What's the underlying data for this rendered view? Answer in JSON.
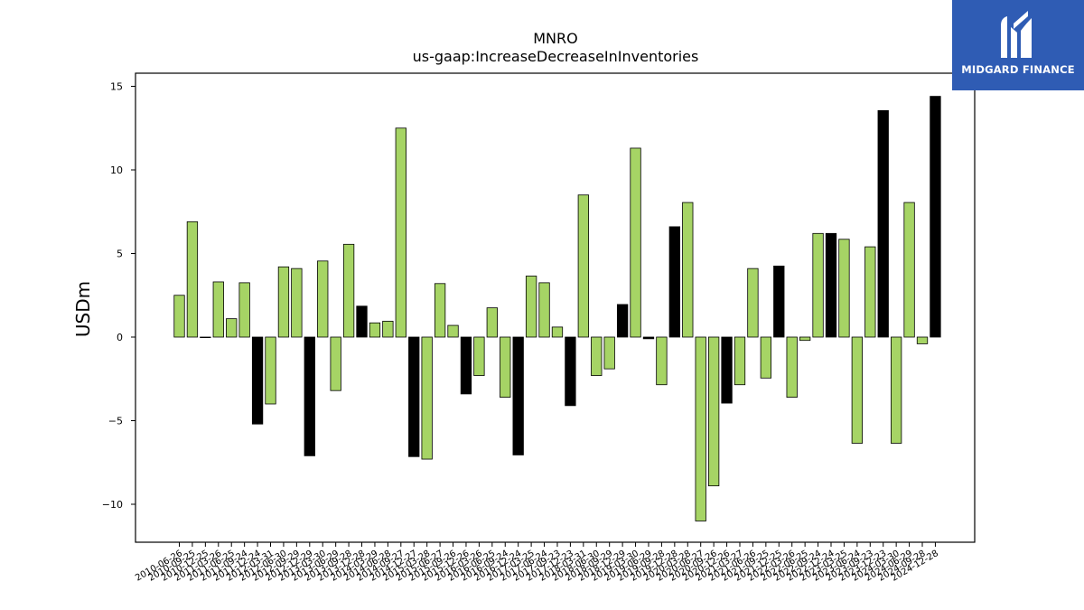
{
  "logo": {
    "name": "MIDGARD FINANCE"
  },
  "chart_data": {
    "type": "bar",
    "title": "MNRO",
    "subtitle": "us-gaap:IncreaseDecreaseInInventories",
    "xlabel": "",
    "ylabel": "USDm",
    "ylim": [
      -12.2,
      15.8
    ],
    "yticks": [
      15,
      10,
      5,
      0,
      -5,
      -10
    ],
    "ytick_labels": [
      "15",
      "10",
      "5",
      "0",
      "−5",
      "−10"
    ],
    "grid": false,
    "colors": {
      "quarter": "#a6d465",
      "annual": "#000000",
      "edge": "#000000"
    },
    "categories": [
      "2010-06-26",
      "2010-09-25",
      "2010-12-25",
      "2011-03-26",
      "2011-06-25",
      "2011-09-24",
      "2011-12-24",
      "2012-03-31",
      "2012-06-30",
      "2012-09-29",
      "2012-12-29",
      "2013-03-30",
      "2013-06-29",
      "2013-09-28",
      "2013-12-28",
      "2014-03-29",
      "2014-06-28",
      "2014-09-27",
      "2014-12-27",
      "2015-03-28",
      "2015-06-27",
      "2015-09-26",
      "2015-12-26",
      "2016-03-26",
      "2016-06-25",
      "2016-09-24",
      "2016-12-24",
      "2017-03-25",
      "2017-06-24",
      "2017-09-23",
      "2017-12-23",
      "2018-03-31",
      "2018-06-30",
      "2018-09-29",
      "2018-12-29",
      "2019-03-30",
      "2019-06-29",
      "2019-09-28",
      "2019-12-28",
      "2020-03-28",
      "2020-06-27",
      "2020-09-26",
      "2020-12-26",
      "2021-03-27",
      "2021-06-26",
      "2021-09-25",
      "2021-12-25",
      "2022-03-26",
      "2022-06-25",
      "2022-09-24",
      "2022-12-24",
      "2023-03-25",
      "2023-06-24",
      "2023-09-23",
      "2023-12-23",
      "2024-03-30",
      "2024-06-29",
      "2024-09-28",
      "2024-12-28"
    ],
    "values": [
      2.5,
      6.9,
      0.0,
      3.3,
      1.1,
      3.25,
      -5.2,
      -4.0,
      4.2,
      4.1,
      -7.1,
      4.55,
      -3.2,
      5.55,
      1.85,
      0.85,
      0.95,
      12.5,
      -7.15,
      -7.3,
      3.2,
      0.7,
      -3.4,
      -2.3,
      1.75,
      -3.6,
      -7.05,
      3.65,
      3.25,
      0.6,
      -4.1,
      8.5,
      -2.3,
      -1.9,
      1.95,
      11.3,
      -0.1,
      -2.85,
      6.6,
      8.05,
      -11.0,
      -8.9,
      -3.95,
      -2.85,
      4.1,
      -2.45,
      4.25,
      -3.6,
      -0.2,
      6.2,
      6.2,
      5.85,
      -6.35,
      5.4,
      13.55,
      -6.35,
      8.05,
      -0.4,
      14.4
    ],
    "series_type": [
      "q",
      "q",
      "q",
      "q",
      "q",
      "q",
      "a",
      "q",
      "q",
      "q",
      "a",
      "q",
      "q",
      "q",
      "a",
      "q",
      "q",
      "q",
      "a",
      "q",
      "q",
      "q",
      "a",
      "q",
      "q",
      "q",
      "a",
      "q",
      "q",
      "q",
      "a",
      "q",
      "q",
      "q",
      "a",
      "q",
      "a",
      "q",
      "a",
      "q",
      "q",
      "q",
      "a",
      "q",
      "q",
      "q",
      "a",
      "q",
      "q",
      "q",
      "a",
      "q",
      "q",
      "q",
      "a",
      "q",
      "q",
      "q",
      "a"
    ]
  }
}
